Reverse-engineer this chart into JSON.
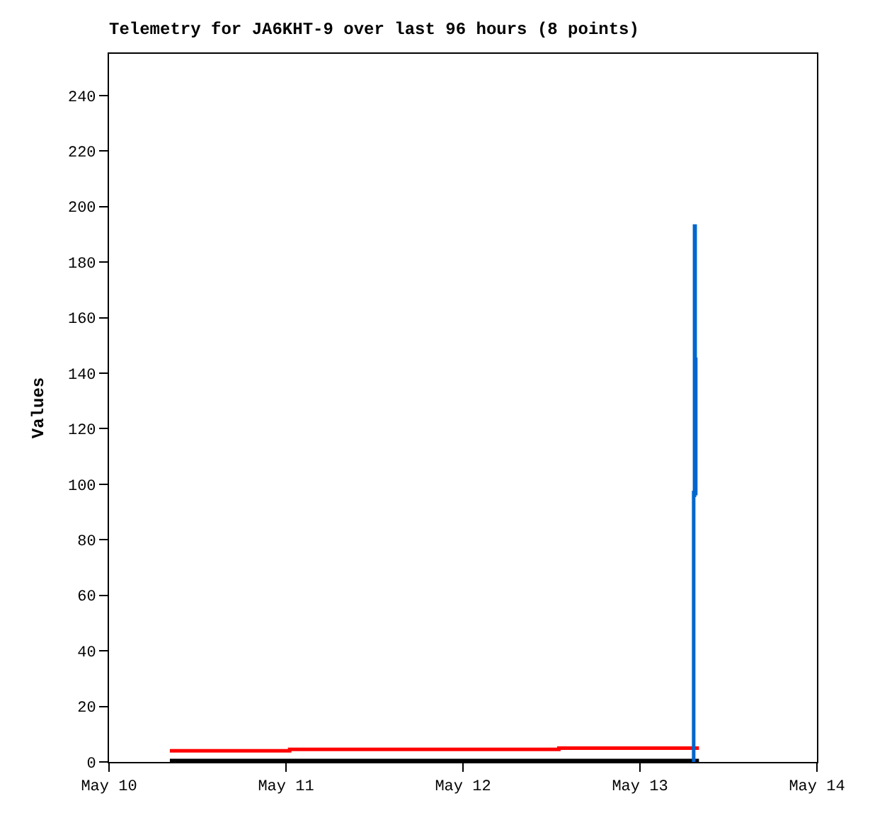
{
  "chart_data": {
    "type": "step",
    "title": "Telemetry for JA6KHT-9 over last 96 hours (8 points)",
    "ylabel": "Values",
    "series": [
      {
        "color": "#000000",
        "x": [
          "--05-10T08:15",
          "--05-13T08:00"
        ],
        "values": [
          0.5,
          0.5
        ]
      },
      {
        "color": "#ff0000",
        "x": [
          "--05-10T08:15",
          "--05-11T00:30",
          "--05-12T13:00",
          "--05-13T08:00"
        ],
        "values": [
          4,
          4.5,
          5,
          5
        ]
      },
      {
        "color": "#0066cc",
        "x": [
          "--05-13T07:14",
          "--05-13T07:17",
          "--05-13T07:24",
          "--05-13T07:29",
          "--05-13T07:34",
          "--05-13T07:38"
        ],
        "values": [
          0,
          97,
          193,
          145,
          96,
          96
        ]
      }
    ],
    "xlim": [
      "--05-10",
      "--05-14"
    ],
    "xticks": [
      {
        "value": "--05-10",
        "label": "May 10"
      },
      {
        "value": "--05-11",
        "label": "May 11"
      },
      {
        "value": "--05-12",
        "label": "May 12"
      },
      {
        "value": "--05-13",
        "label": "May 13"
      },
      {
        "value": "--05-14",
        "label": "May 14"
      }
    ],
    "ylim": [
      0,
      255
    ],
    "yticks": [
      0,
      20,
      40,
      60,
      80,
      100,
      120,
      140,
      160,
      180,
      200,
      220,
      240
    ],
    "line_style": "solid",
    "marker": "none"
  }
}
